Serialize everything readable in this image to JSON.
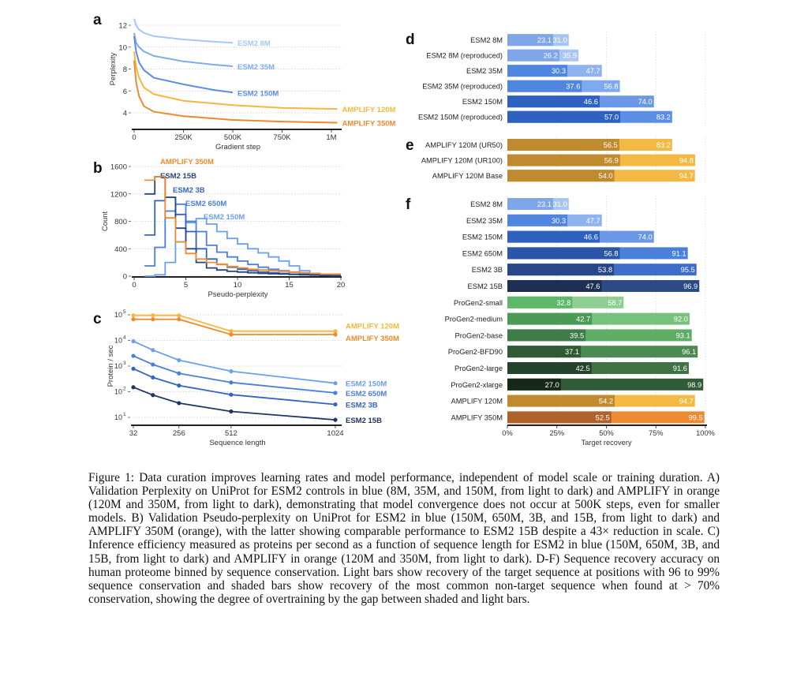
{
  "figure": {
    "caption": "Figure 1: Data curation improves learning rates and model performance, independent of model scale or training duration. A) Validation Perplexity on UniProt for ESM2 controls in blue (8M, 35M, and 150M, from light to dark) and AMPLIFY in orange (120M and 350M, from light to dark), demonstrating that model convergence does not occur at 500K steps, even for smaller models. B) Validation Pseudo-perplexity on UniProt for ESM2 in blue (150M, 650M, 3B, and 15B, from light to dark) and AMPLIFY 350M (orange), with the latter showing comparable performance to ESM2 15B despite a 43× reduction in scale. C) Inference efficiency measured as proteins per second as a function of sequence length for ESM2 in blue (150M, 650M, 3B, and 15B, from light to dark) and AMPLIFY in orange (120M and 350M, from light to dark). D-F) Sequence recovery accuracy on human proteome binned by sequence conservation. Light bars show recovery of the target sequence at positions with 96 to 99% sequence conservation and shaded bars show recovery of the most common non-target sequence when found at > 70% conservation, showing the degree of overtraining by the gap between shaded and light bars."
  },
  "chart_data": [
    {
      "panel_label": "a",
      "type": "line",
      "xlabel": "Gradient step",
      "ylabel": "Perplexity",
      "xlim": [
        0,
        1000000
      ],
      "ylim": [
        4,
        12
      ],
      "xticks": [
        {
          "value": 0,
          "label": "0"
        },
        {
          "value": 250000,
          "label": "250K"
        },
        {
          "value": 500000,
          "label": "500K"
        },
        {
          "value": 750000,
          "label": "750K"
        },
        {
          "value": 1000000,
          "label": "1M"
        }
      ],
      "yticks": [
        {
          "value": 4,
          "label": "4"
        },
        {
          "value": 6,
          "label": "6"
        },
        {
          "value": 8,
          "label": "8"
        },
        {
          "value": 10,
          "label": "10"
        },
        {
          "value": 12,
          "label": "12"
        }
      ],
      "grid": true,
      "series": [
        {
          "name": "ESM2 8M",
          "color": "#a9c7f3",
          "points": [
            [
              0,
              12.6
            ],
            [
              10000,
              12.0
            ],
            [
              25000,
              11.6
            ],
            [
              50000,
              11.3
            ],
            [
              100000,
              11.0
            ],
            [
              250000,
              10.7
            ],
            [
              400000,
              10.5
            ],
            [
              500000,
              10.4
            ]
          ]
        },
        {
          "name": "ESM2 35M",
          "color": "#7faaf0",
          "points": [
            [
              0,
              11.3
            ],
            [
              10000,
              10.4
            ],
            [
              25000,
              10.0
            ],
            [
              50000,
              9.6
            ],
            [
              100000,
              9.2
            ],
            [
              250000,
              8.7
            ],
            [
              400000,
              8.4
            ],
            [
              500000,
              8.25
            ]
          ]
        },
        {
          "name": "ESM2 150M",
          "color": "#5b8de6",
          "points": [
            [
              0,
              11.0
            ],
            [
              10000,
              9.6
            ],
            [
              25000,
              8.6
            ],
            [
              50000,
              7.9
            ],
            [
              100000,
              7.2
            ],
            [
              250000,
              6.6
            ],
            [
              400000,
              6.1
            ],
            [
              500000,
              5.85
            ]
          ]
        },
        {
          "name": "AMPLIFY 120M",
          "color": "#f7b73e",
          "points": [
            [
              0,
              9.6
            ],
            [
              10000,
              8.2
            ],
            [
              25000,
              7.2
            ],
            [
              50000,
              6.3
            ],
            [
              100000,
              5.7
            ],
            [
              250000,
              5.1
            ],
            [
              500000,
              4.7
            ],
            [
              750000,
              4.45
            ],
            [
              1030000,
              4.35
            ]
          ]
        },
        {
          "name": "AMPLIFY 350M",
          "color": "#ee8a2e",
          "points": [
            [
              0,
              8.8
            ],
            [
              10000,
              6.8
            ],
            [
              25000,
              5.5
            ],
            [
              50000,
              4.6
            ],
            [
              100000,
              4.1
            ],
            [
              250000,
              3.7
            ],
            [
              500000,
              3.35
            ],
            [
              750000,
              3.2
            ],
            [
              1030000,
              3.1
            ]
          ]
        }
      ]
    },
    {
      "panel_label": "b",
      "type": "histogram",
      "xlabel": "Pseudo-perplexity",
      "ylabel": "Count",
      "xlim": [
        0,
        20
      ],
      "ylim": [
        0,
        1600
      ],
      "xticks": [
        {
          "value": 0,
          "label": "0"
        },
        {
          "value": 5,
          "label": "5"
        },
        {
          "value": 10,
          "label": "10"
        },
        {
          "value": 15,
          "label": "15"
        },
        {
          "value": 20,
          "label": "20"
        }
      ],
      "yticks": [
        {
          "value": 0,
          "label": "0"
        },
        {
          "value": 400,
          "label": "400"
        },
        {
          "value": 800,
          "label": "800"
        },
        {
          "value": 1200,
          "label": "1200"
        },
        {
          "value": 1600,
          "label": "1600"
        }
      ],
      "grid": true,
      "bin_start": 1,
      "bin_width": 1,
      "series": [
        {
          "name": "ESM2 150M",
          "color": "#6c9ff0",
          "counts": [
            0,
            20,
            200,
            500,
            780,
            840,
            760,
            650,
            550,
            470,
            400,
            340,
            280,
            220,
            150,
            80,
            40,
            20,
            10
          ]
        },
        {
          "name": "ESM2 650M",
          "color": "#4a7fdc",
          "counts": [
            150,
            420,
            950,
            1050,
            800,
            650,
            450,
            350,
            280,
            220,
            170,
            130,
            100,
            80,
            60,
            40,
            30,
            20,
            10
          ]
        },
        {
          "name": "ESM2 3B",
          "color": "#3563c2",
          "counts": [
            600,
            1100,
            1150,
            900,
            650,
            400,
            250,
            170,
            130,
            100,
            80,
            60,
            50,
            40,
            30,
            25,
            20,
            15,
            10
          ]
        },
        {
          "name": "ESM2 15B",
          "color": "#27457f",
          "counts": [
            1200,
            1450,
            1150,
            700,
            400,
            200,
            120,
            90,
            70,
            60,
            50,
            40,
            35,
            30,
            25,
            20,
            15,
            10,
            5
          ]
        },
        {
          "name": "AMPLIFY 350M",
          "color": "#ef8a2e",
          "counts": [
            1400,
            1450,
            850,
            500,
            330,
            250,
            200,
            170,
            140,
            120,
            100,
            90,
            80,
            70,
            60,
            50,
            40,
            30,
            30
          ]
        }
      ]
    },
    {
      "panel_label": "c",
      "type": "line",
      "xlabel": "Sequence length",
      "ylabel": "Protein / sec",
      "xlim": [
        32,
        1024
      ],
      "ylim": [
        10,
        100000
      ],
      "yscale": "log",
      "xticks": [
        {
          "value": 32,
          "label": "32"
        },
        {
          "value": 256,
          "label": "256"
        },
        {
          "value": 512,
          "label": "512"
        },
        {
          "value": 1024,
          "label": "1024"
        }
      ],
      "yticks": [
        {
          "value": 10,
          "base": "10",
          "exp": "1"
        },
        {
          "value": 100,
          "base": "10",
          "exp": "2"
        },
        {
          "value": 1000,
          "base": "10",
          "exp": "3"
        },
        {
          "value": 10000,
          "base": "10",
          "exp": "4"
        },
        {
          "value": 100000,
          "base": "10",
          "exp": "5"
        }
      ],
      "grid": true,
      "x": [
        32,
        128,
        256,
        512,
        1024
      ],
      "series": [
        {
          "name": "AMPLIFY 120M",
          "color": "#f7b73e",
          "values": [
            95000,
            95000,
            95000,
            23000,
            23000
          ]
        },
        {
          "name": "AMPLIFY 350M",
          "color": "#ee8a2e",
          "values": [
            67000,
            67000,
            67000,
            17000,
            17000
          ]
        },
        {
          "name": "ESM2 150M",
          "color": "#6c9ff0",
          "values": [
            9300,
            4200,
            1700,
            630,
            215
          ]
        },
        {
          "name": "ESM2 650M",
          "color": "#4a80dc",
          "values": [
            2500,
            1150,
            520,
            230,
            90
          ]
        },
        {
          "name": "ESM2 3B",
          "color": "#3563c2",
          "values": [
            790,
            360,
            175,
            77,
            32
          ]
        },
        {
          "name": "ESM2 15B",
          "color": "#1f3563",
          "values": [
            150,
            74,
            36,
            17,
            8
          ]
        }
      ]
    },
    {
      "panel_label": "d",
      "type": "bar",
      "orientation": "horizontal",
      "xlim": [
        0,
        100
      ],
      "rows": [
        {
          "label": "ESM2 8M",
          "shaded": 23.1,
          "light": 31.0,
          "shaded_value": "23.1",
          "light_value": "31.0",
          "shaded_color": "#7fa6e8",
          "light_color": "#a9c6f3"
        },
        {
          "label": "ESM2 8M (reproduced)",
          "shaded": 26.2,
          "light": 35.9,
          "shaded_value": "26.2",
          "light_value": "35.9",
          "shaded_color": "#7fa6e8",
          "light_color": "#a9c6f3"
        },
        {
          "label": "ESM2 35M",
          "shaded": 30.3,
          "light": 47.7,
          "shaded_value": "30.3",
          "light_value": "47.7",
          "shaded_color": "#4f86e0",
          "light_color": "#8fb3ee"
        },
        {
          "label": "ESM2 35M (reproduced)",
          "shaded": 37.6,
          "light": 56.8,
          "shaded_value": "37.6",
          "light_value": "56.8",
          "shaded_color": "#4f86e0",
          "light_color": "#7eaaf0"
        },
        {
          "label": "ESM2 150M",
          "shaded": 46.6,
          "light": 74.0,
          "shaded_value": "46.6",
          "light_value": "74.0",
          "shaded_color": "#2f62c0",
          "light_color": "#6a98e6"
        },
        {
          "label": "ESM2 150M (reproduced)",
          "shaded": 57.0,
          "light": 83.2,
          "shaded_value": "57.0",
          "light_value": "83.2",
          "shaded_color": "#2f62c0",
          "light_color": "#5b8ee6"
        }
      ]
    },
    {
      "panel_label": "e",
      "type": "bar",
      "orientation": "horizontal",
      "xlim": [
        0,
        100
      ],
      "rows": [
        {
          "label": "AMPLIFY 120M (UR50)",
          "shaded": 56.5,
          "light": 83.2,
          "shaded_value": "56.5",
          "light_value": "83.2",
          "shaded_color": "#c08a2e",
          "light_color": "#f4b942"
        },
        {
          "label": "AMPLIFY 120M (UR100)",
          "shaded": 56.9,
          "light": 94.8,
          "shaded_value": "56.9",
          "light_value": "94.8",
          "shaded_color": "#c08a2e",
          "light_color": "#f4b942"
        },
        {
          "label": "AMPLIFY 120M Base",
          "shaded": 54.0,
          "light": 94.7,
          "shaded_value": "54.0",
          "light_value": "94.7",
          "shaded_color": "#c08a2e",
          "light_color": "#f4b942"
        }
      ]
    },
    {
      "panel_label": "f",
      "type": "bar",
      "orientation": "horizontal",
      "xlim": [
        0,
        100
      ],
      "xlabel": "Target recovery",
      "xticks": [
        {
          "value": 0,
          "label": "0%"
        },
        {
          "value": 25,
          "label": "25%"
        },
        {
          "value": 50,
          "label": "50%"
        },
        {
          "value": 75,
          "label": "75%"
        },
        {
          "value": 100,
          "label": "100%"
        }
      ],
      "rows": [
        {
          "label": "ESM2 8M",
          "shaded": 23.1,
          "light": 31.0,
          "shaded_value": "23.1",
          "light_value": "31.0",
          "shaded_color": "#7fa6e8",
          "light_color": "#a9c6f3"
        },
        {
          "label": "ESM2 35M",
          "shaded": 30.3,
          "light": 47.7,
          "shaded_value": "30.3",
          "light_value": "47.7",
          "shaded_color": "#4f86e0",
          "light_color": "#8fb3ee"
        },
        {
          "label": "ESM2 150M",
          "shaded": 46.6,
          "light": 74.0,
          "shaded_value": "46.6",
          "light_value": "74.0",
          "shaded_color": "#2f62c0",
          "light_color": "#6a98e6"
        },
        {
          "label": "ESM2 650M",
          "shaded": 56.8,
          "light": 91.1,
          "shaded_value": "56.8",
          "light_value": "91.1",
          "shaded_color": "#2a55a8",
          "light_color": "#4a80dc"
        },
        {
          "label": "ESM2 3B",
          "shaded": 53.8,
          "light": 95.5,
          "shaded_value": "53.8",
          "light_value": "95.5",
          "shaded_color": "#27478a",
          "light_color": "#3d6cc9"
        },
        {
          "label": "ESM2 15B",
          "shaded": 47.6,
          "light": 96.9,
          "shaded_value": "47.6",
          "light_value": "96.9",
          "shaded_color": "#1d2f55",
          "light_color": "#2b4a86"
        },
        {
          "label": "ProGen2-small",
          "shaded": 32.8,
          "light": 58.7,
          "shaded_value": "32.8",
          "light_value": "58.7",
          "shaded_color": "#5fb86a",
          "light_color": "#8fcf93"
        },
        {
          "label": "ProGen2-medium",
          "shaded": 42.7,
          "light": 92.0,
          "shaded_value": "42.7",
          "light_value": "92.0",
          "shaded_color": "#4c9a57",
          "light_color": "#78c27f"
        },
        {
          "label": "ProGen2-base",
          "shaded": 39.5,
          "light": 93.1,
          "shaded_value": "39.5",
          "light_value": "93.1",
          "shaded_color": "#3f7d48",
          "light_color": "#5fae66"
        },
        {
          "label": "ProGen2-BFD90",
          "shaded": 37.1,
          "light": 96.1,
          "shaded_value": "37.1",
          "light_value": "96.1",
          "shaded_color": "#2f5a34",
          "light_color": "#4b8b53"
        },
        {
          "label": "ProGen2-large",
          "shaded": 42.5,
          "light": 91.6,
          "shaded_value": "42.5",
          "light_value": "91.6",
          "shaded_color": "#23432a",
          "light_color": "#3e7444"
        },
        {
          "label": "ProGen2-xlarge",
          "shaded": 27.0,
          "light": 98.9,
          "shaded_value": "27.0",
          "light_value": "98.9",
          "shaded_color": "#16281a",
          "light_color": "#2f5c36"
        },
        {
          "label": "AMPLIFY 120M",
          "shaded": 54.2,
          "light": 94.7,
          "shaded_value": "54.2",
          "light_value": "94.7",
          "shaded_color": "#c08a2e",
          "light_color": "#f4b942"
        },
        {
          "label": "AMPLIFY 350M",
          "shaded": 52.5,
          "light": 99.5,
          "shaded_value": "52.5",
          "light_value": "99.5",
          "shaded_color": "#b0622a",
          "light_color": "#ee8a32"
        }
      ]
    }
  ]
}
